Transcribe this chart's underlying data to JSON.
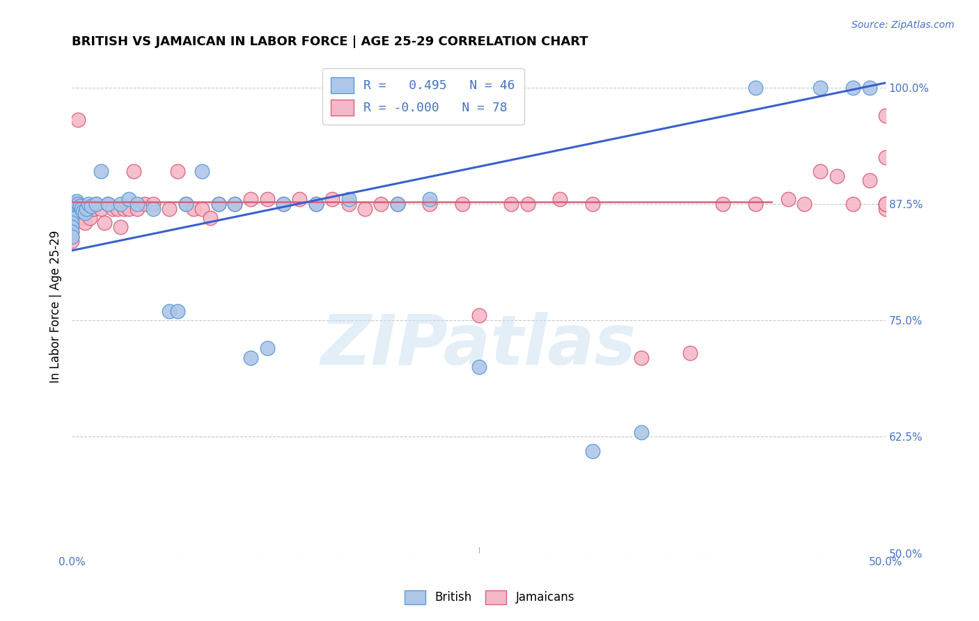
{
  "title": "BRITISH VS JAMAICAN IN LABOR FORCE | AGE 25-29 CORRELATION CHART",
  "source": "Source: ZipAtlas.com",
  "ylabel": "In Labor Force | Age 25-29",
  "xlim": [
    0.0,
    0.5
  ],
  "ylim": [
    0.5,
    1.03
  ],
  "yticks": [
    0.5,
    0.625,
    0.75,
    0.875,
    1.0
  ],
  "ytick_labels": [
    "50.0%",
    "62.5%",
    "75.0%",
    "87.5%",
    "100.0%"
  ],
  "xticks": [
    0.0,
    0.0625,
    0.125,
    0.1875,
    0.25,
    0.3125,
    0.375,
    0.4375,
    0.5
  ],
  "xtick_labels": [
    "0.0%",
    "",
    "",
    "",
    "",
    "",
    "",
    "",
    "50.0%"
  ],
  "british_color": "#aec6e8",
  "jamaican_color": "#f4b8c8",
  "british_edge_color": "#5b9bd5",
  "jamaican_edge_color": "#d9607a",
  "trend_british_color": "#3a5fcd",
  "trend_jamaican_color": "#d9607a",
  "legend_r_british": "R =   0.495   N = 46",
  "legend_r_jamaican": "R = -0.000   N = 78",
  "watermark": "ZIPatlas",
  "british_trend_x0": 0.0,
  "british_trend_y0": 0.825,
  "british_trend_x1": 0.5,
  "british_trend_y1": 1.005,
  "jamaican_trend_y": 0.877,
  "jamaican_trend_xend": 0.43,
  "british_x": [
    0.0,
    0.0,
    0.0,
    0.0,
    0.0,
    0.0,
    0.0,
    0.0,
    0.001,
    0.002,
    0.003,
    0.004,
    0.005,
    0.006,
    0.007,
    0.008,
    0.009,
    0.01,
    0.012,
    0.015,
    0.018,
    0.022,
    0.03,
    0.035,
    0.04,
    0.05,
    0.06,
    0.065,
    0.07,
    0.08,
    0.09,
    0.1,
    0.11,
    0.12,
    0.13,
    0.15,
    0.17,
    0.2,
    0.22,
    0.25,
    0.32,
    0.35,
    0.42,
    0.46,
    0.48,
    0.49
  ],
  "british_y": [
    0.875,
    0.87,
    0.865,
    0.86,
    0.855,
    0.85,
    0.845,
    0.84,
    0.875,
    0.875,
    0.878,
    0.875,
    0.873,
    0.87,
    0.867,
    0.865,
    0.87,
    0.875,
    0.873,
    0.875,
    0.91,
    0.875,
    0.875,
    0.88,
    0.875,
    0.87,
    0.76,
    0.76,
    0.875,
    0.91,
    0.875,
    0.875,
    0.71,
    0.72,
    0.875,
    0.875,
    0.88,
    0.875,
    0.88,
    0.7,
    0.61,
    0.63,
    1.0,
    1.0,
    1.0,
    1.0
  ],
  "jamaican_x": [
    0.0,
    0.0,
    0.0,
    0.0,
    0.0,
    0.0,
    0.0,
    0.0,
    0.0,
    0.0,
    0.001,
    0.002,
    0.003,
    0.004,
    0.005,
    0.006,
    0.007,
    0.008,
    0.009,
    0.01,
    0.011,
    0.012,
    0.013,
    0.015,
    0.018,
    0.02,
    0.022,
    0.025,
    0.028,
    0.03,
    0.032,
    0.035,
    0.038,
    0.04,
    0.045,
    0.05,
    0.06,
    0.065,
    0.07,
    0.075,
    0.08,
    0.085,
    0.09,
    0.1,
    0.11,
    0.12,
    0.13,
    0.14,
    0.15,
    0.16,
    0.17,
    0.18,
    0.19,
    0.2,
    0.22,
    0.24,
    0.25,
    0.27,
    0.28,
    0.3,
    0.32,
    0.35,
    0.38,
    0.4,
    0.42,
    0.44,
    0.45,
    0.46,
    0.47,
    0.48,
    0.49,
    0.5,
    0.5,
    0.5,
    0.5,
    0.5,
    0.5,
    0.5
  ],
  "jamaican_y": [
    0.875,
    0.87,
    0.87,
    0.865,
    0.86,
    0.855,
    0.85,
    0.845,
    0.84,
    0.835,
    0.875,
    0.875,
    0.87,
    0.965,
    0.87,
    0.865,
    0.86,
    0.855,
    0.87,
    0.87,
    0.86,
    0.87,
    0.87,
    0.875,
    0.87,
    0.855,
    0.875,
    0.87,
    0.87,
    0.85,
    0.87,
    0.87,
    0.91,
    0.87,
    0.875,
    0.875,
    0.87,
    0.91,
    0.875,
    0.87,
    0.87,
    0.86,
    0.875,
    0.875,
    0.88,
    0.88,
    0.875,
    0.88,
    0.875,
    0.88,
    0.875,
    0.87,
    0.875,
    0.875,
    0.875,
    0.875,
    0.755,
    0.875,
    0.875,
    0.88,
    0.875,
    0.71,
    0.715,
    0.875,
    0.875,
    0.88,
    0.875,
    0.91,
    0.905,
    0.875,
    0.9,
    0.875,
    0.875,
    0.87,
    0.97,
    0.925,
    0.875,
    0.875
  ]
}
